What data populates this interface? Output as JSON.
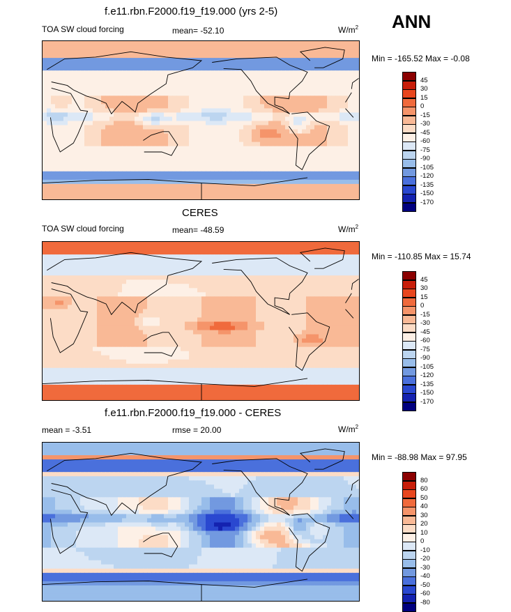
{
  "season": "ANN",
  "panels": [
    {
      "title": "f.e11.rbn.F2000.f19_f19.000 (yrs 2-5)",
      "left_label": "TOA SW cloud forcing",
      "center_label": "mean= -52.10",
      "units": "W/m",
      "units_sup": "2",
      "minmax": "Min = -165.52 Max =  -0.08",
      "colorbar": [
        "45",
        "30",
        "15",
        "0",
        "-15",
        "-30",
        "-45",
        "-60",
        "-75",
        "-90",
        "-105",
        "-120",
        "-135",
        "-150",
        "-170"
      ]
    },
    {
      "title": "CERES",
      "left_label": "TOA SW cloud forcing",
      "center_label": "mean= -48.59",
      "units": "W/m",
      "units_sup": "2",
      "minmax": "Min = -110.85 Max =  15.74",
      "colorbar": [
        "45",
        "30",
        "15",
        "0",
        "-15",
        "-30",
        "-45",
        "-60",
        "-75",
        "-90",
        "-105",
        "-120",
        "-135",
        "-150",
        "-170"
      ]
    },
    {
      "title": "f.e11.rbn.F2000.f19_f19.000 - CERES",
      "left_label": "mean =  -3.51",
      "center_label": "rmse =  20.00",
      "units": "W/m",
      "units_sup": "2",
      "minmax": "Min = -88.98 Max =  97.95",
      "colorbar": [
        "80",
        "60",
        "50",
        "40",
        "30",
        "20",
        "10",
        "0",
        "-10",
        "-20",
        "-30",
        "-40",
        "-50",
        "-60",
        "-80"
      ]
    }
  ],
  "colors": {
    "abs_scale": [
      "#8b0000",
      "#c81e0a",
      "#e8461e",
      "#f06a3c",
      "#f5946a",
      "#f9b996",
      "#fcdcc6",
      "#fdf0e6",
      "#dce8f6",
      "#bcd5f0",
      "#98bdea",
      "#7299e0",
      "#4a70dc",
      "#2a48d0",
      "#1422b0",
      "#00007f"
    ],
    "diff_scale": [
      "#8b0000",
      "#c81e0a",
      "#e8461e",
      "#f06a3c",
      "#f5946a",
      "#f9b996",
      "#fcdcc6",
      "#fdf0e6",
      "#dce8f6",
      "#bcd5f0",
      "#98bdea",
      "#7299e0",
      "#4a70dc",
      "#2a48d0",
      "#1422b0",
      "#00007f"
    ]
  },
  "chart_data": [
    {
      "type": "heatmap",
      "title": "f.e11.rbn.F2000.f19_f19.000 (yrs 2-5)",
      "variable": "TOA SW cloud forcing",
      "units": "W/m2",
      "mean": -52.1,
      "min": -165.52,
      "max": -0.08,
      "levels": [
        45,
        30,
        15,
        0,
        -15,
        -30,
        -45,
        -60,
        -75,
        -90,
        -105,
        -120,
        -135,
        -150,
        -170
      ]
    },
    {
      "type": "heatmap",
      "title": "CERES",
      "variable": "TOA SW cloud forcing",
      "units": "W/m2",
      "mean": -48.59,
      "min": -110.85,
      "max": 15.74,
      "levels": [
        45,
        30,
        15,
        0,
        -15,
        -30,
        -45,
        -60,
        -75,
        -90,
        -105,
        -120,
        -135,
        -150,
        -170
      ]
    },
    {
      "type": "heatmap",
      "title": "f.e11.rbn.F2000.f19_f19.000 - CERES",
      "units": "W/m2",
      "mean": -3.51,
      "rmse": 20.0,
      "min": -88.98,
      "max": 97.95,
      "levels": [
        80,
        60,
        50,
        40,
        30,
        20,
        10,
        0,
        -10,
        -20,
        -30,
        -40,
        -50,
        -60,
        -80
      ]
    }
  ]
}
